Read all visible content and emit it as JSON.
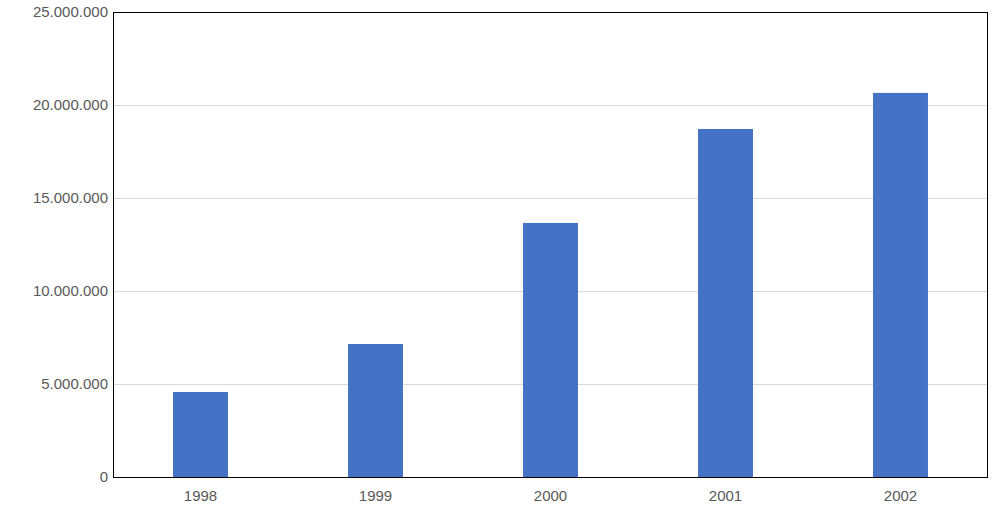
{
  "chart_data": {
    "type": "bar",
    "categories": [
      "1998",
      "1999",
      "2000",
      "2001",
      "2002"
    ],
    "values": [
      4570000,
      7150000,
      13660000,
      18710000,
      20650000
    ],
    "color": "#4472c4",
    "ylim": [
      0,
      25000000
    ],
    "yticks": [
      0,
      {
        "value": 5000000,
        "label": "5.000.000"
      },
      {
        "value": 10000000,
        "label": "10.000.000"
      },
      {
        "value": 15000000,
        "label": "15.000.000"
      },
      {
        "value": 20000000,
        "label": "20.000.000"
      },
      {
        "value": 25000000,
        "label": "25.000.000"
      }
    ],
    "grid": true
  }
}
